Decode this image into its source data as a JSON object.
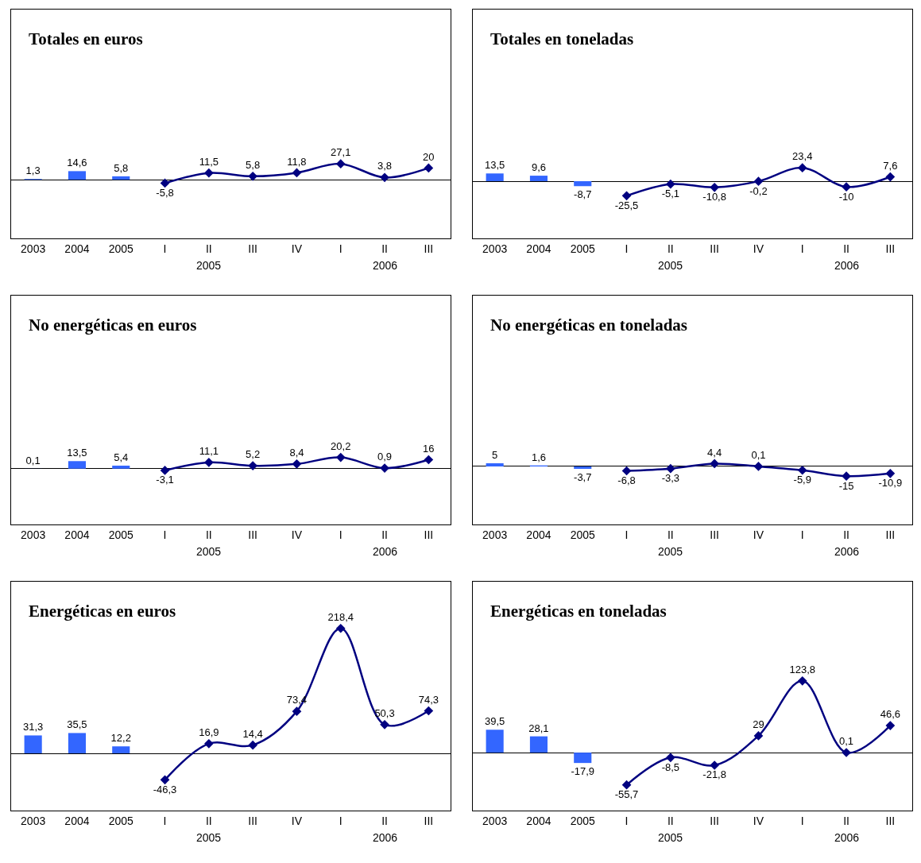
{
  "chart_data": [
    {
      "type": "bar",
      "title": "Totales en euros",
      "categories": [
        "2003",
        "2004",
        "2005",
        "I",
        "II",
        "III",
        "IV",
        "I",
        "II",
        "III"
      ],
      "annotations": [
        "2005",
        "2006"
      ],
      "ylim": [
        -100,
        290
      ],
      "tick_labels": "x",
      "grid": false,
      "marker": "diamond",
      "series": [
        {
          "color": "#3366ff",
          "values": [
            1.3,
            14.6,
            5.8,
            null,
            null,
            null,
            null,
            null,
            null,
            null
          ],
          "value_labels": [
            "1,3",
            "14,6",
            "5,8",
            null,
            null,
            null,
            null,
            null,
            null,
            null
          ]
        },
        {
          "type": "line",
          "color": "#000080",
          "values": [
            null,
            null,
            null,
            -5.8,
            11.5,
            5.8,
            11.8,
            27.1,
            3.8,
            20
          ],
          "value_labels": [
            null,
            null,
            null,
            "-5,8",
            "11,5",
            "5,8",
            "11,8",
            "27,1",
            "3,8",
            "20"
          ]
        }
      ]
    },
    {
      "type": "bar",
      "title": "Totales en toneladas",
      "categories": [
        "2003",
        "2004",
        "2005",
        "I",
        "II",
        "III",
        "IV",
        "I",
        "II",
        "III"
      ],
      "annotations": [
        "2005",
        "2006"
      ],
      "ylim": [
        -100,
        300
      ],
      "tick_labels": "x",
      "grid": false,
      "marker": "diamond",
      "series": [
        {
          "color": "#3366ff",
          "values": [
            13.5,
            9.6,
            -8.7,
            null,
            null,
            null,
            null,
            null,
            null,
            null
          ],
          "value_labels": [
            "13,5",
            "9,6",
            "-8,7",
            null,
            null,
            null,
            null,
            null,
            null,
            null
          ]
        },
        {
          "type": "line",
          "color": "#000080",
          "values": [
            null,
            null,
            null,
            -25.5,
            -5.1,
            -10.8,
            -0.2,
            23.4,
            -10,
            7.6
          ],
          "value_labels": [
            null,
            null,
            null,
            "-25,5",
            "-5,1",
            "-10,8",
            "-0,2",
            "23,4",
            "-10",
            "7,6"
          ]
        }
      ]
    },
    {
      "type": "bar",
      "title": "No energéticas en euros",
      "categories": [
        "2003",
        "2004",
        "2005",
        "I",
        "II",
        "III",
        "IV",
        "I",
        "II",
        "III"
      ],
      "annotations": [
        "2005",
        "2006"
      ],
      "ylim": [
        -100,
        310
      ],
      "tick_labels": "x",
      "grid": false,
      "marker": "diamond",
      "series": [
        {
          "color": "#3366ff",
          "values": [
            0.1,
            13.5,
            5.4,
            null,
            null,
            null,
            null,
            null,
            null,
            null
          ],
          "value_labels": [
            "0,1",
            "13,5",
            "5,4",
            null,
            null,
            null,
            null,
            null,
            null,
            null
          ]
        },
        {
          "type": "line",
          "color": "#000080",
          "values": [
            null,
            null,
            null,
            -3.1,
            11.1,
            5.2,
            8.4,
            20.2,
            0.9,
            16
          ],
          "value_labels": [
            null,
            null,
            null,
            "-3,1",
            "11,1",
            "5,2",
            "8,4",
            "20,2",
            "0,9",
            "16"
          ]
        }
      ]
    },
    {
      "type": "bar",
      "title": "No energéticas en toneladas",
      "categories": [
        "2003",
        "2004",
        "2005",
        "I",
        "II",
        "III",
        "IV",
        "I",
        "II",
        "III"
      ],
      "annotations": [
        "2005",
        "2006"
      ],
      "ylim": [
        -90,
        265
      ],
      "tick_labels": "x",
      "grid": false,
      "marker": "diamond",
      "series": [
        {
          "color": "#3366ff",
          "values": [
            5,
            1.6,
            -3.7,
            null,
            null,
            null,
            null,
            null,
            null,
            null
          ],
          "value_labels": [
            "5",
            "1,6",
            "-3,7",
            null,
            null,
            null,
            null,
            null,
            null,
            null
          ]
        },
        {
          "type": "line",
          "color": "#000080",
          "values": [
            null,
            null,
            null,
            -6.8,
            -3.3,
            4.4,
            0.1,
            -5.9,
            -15,
            -10.9
          ],
          "value_labels": [
            null,
            null,
            null,
            "-6,8",
            "-3,3",
            "4,4",
            "0,1",
            "-5,9",
            "-15",
            "-10,9"
          ]
        }
      ]
    },
    {
      "type": "bar",
      "title": "Energéticas en euros",
      "categories": [
        "2003",
        "2004",
        "2005",
        "I",
        "II",
        "III",
        "IV",
        "I",
        "II",
        "III"
      ],
      "annotations": [
        "2005",
        "2006"
      ],
      "ylim": [
        -100,
        300
      ],
      "tick_labels": "x",
      "grid": false,
      "marker": "diamond",
      "series": [
        {
          "color": "#3366ff",
          "values": [
            31.3,
            35.5,
            12.2,
            null,
            null,
            null,
            null,
            null,
            null,
            null
          ],
          "value_labels": [
            "31,3",
            "35,5",
            "12,2",
            null,
            null,
            null,
            null,
            null,
            null,
            null
          ]
        },
        {
          "type": "line",
          "color": "#000080",
          "values": [
            null,
            null,
            null,
            -46.3,
            16.9,
            14.4,
            73.4,
            218.4,
            50.3,
            74.3
          ],
          "value_labels": [
            null,
            null,
            null,
            "-46,3",
            "16,9",
            "14,4",
            "73,4",
            "218,4",
            "50,3",
            "74,3"
          ]
        }
      ]
    },
    {
      "type": "bar",
      "title": "Energéticas en toneladas",
      "categories": [
        "2003",
        "2004",
        "2005",
        "I",
        "II",
        "III",
        "IV",
        "I",
        "II",
        "III"
      ],
      "annotations": [
        "2005",
        "2006"
      ],
      "ylim": [
        -100,
        295
      ],
      "tick_labels": "x",
      "grid": false,
      "marker": "diamond",
      "series": [
        {
          "color": "#3366ff",
          "values": [
            39.5,
            28.1,
            -17.9,
            null,
            null,
            null,
            null,
            null,
            null,
            null
          ],
          "value_labels": [
            "39,5",
            "28,1",
            "-17,9",
            null,
            null,
            null,
            null,
            null,
            null,
            null
          ]
        },
        {
          "type": "line",
          "color": "#000080",
          "values": [
            null,
            null,
            null,
            -55.7,
            -8.5,
            -21.8,
            29,
            123.8,
            0.1,
            46.6
          ],
          "value_labels": [
            null,
            null,
            null,
            "-55,7",
            "-8,5",
            "-21,8",
            "29",
            "123,8",
            "0,1",
            "46,6"
          ]
        }
      ]
    }
  ]
}
